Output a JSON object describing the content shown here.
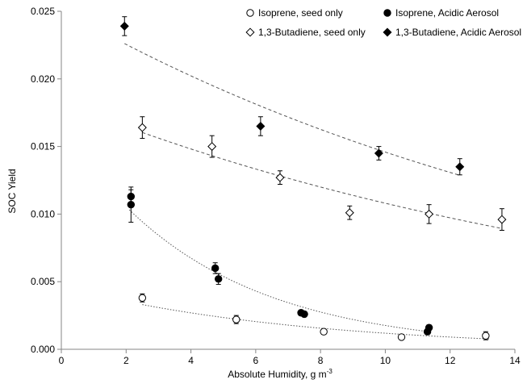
{
  "chart_data": {
    "type": "scatter",
    "xlabel": "Absolute Humidity, g m",
    "xlabel_superscript": "-3",
    "ylabel": "SOC Yield",
    "xlim": [
      0,
      14
    ],
    "ylim": [
      0,
      0.025
    ],
    "x_ticks": [
      "0",
      "2",
      "4",
      "6",
      "8",
      "10",
      "12",
      "14"
    ],
    "y_ticks": [
      "0.000",
      "0.005",
      "0.010",
      "0.015",
      "0.020",
      "0.025"
    ],
    "grid": false,
    "legend_position": "top",
    "series": [
      {
        "name": "Isoprene, seed only",
        "marker": "circle-open",
        "fit": "dotted",
        "fit_x": [
          2.5,
          13.2
        ],
        "points": [
          {
            "x": 2.5,
            "y": 0.0038,
            "yerr": 0.0003
          },
          {
            "x": 5.4,
            "y": 0.0022,
            "yerr": 0.0003
          },
          {
            "x": 8.1,
            "y": 0.0013,
            "yerr": 0.0002
          },
          {
            "x": 10.5,
            "y": 0.0009,
            "yerr": 0.0001
          },
          {
            "x": 13.1,
            "y": 0.001,
            "yerr": 0.0003
          }
        ]
      },
      {
        "name": "Isoprene, Acidic Aerosol",
        "marker": "circle-filled",
        "fit": "dotted",
        "fit_x": [
          2.1,
          11.4
        ],
        "points": [
          {
            "x": 2.15,
            "y": 0.0113,
            "yerr": 0.0005
          },
          {
            "x": 2.15,
            "y": 0.0107,
            "yerr": 0.0013
          },
          {
            "x": 4.75,
            "y": 0.006,
            "yerr": 0.0004
          },
          {
            "x": 4.85,
            "y": 0.0052,
            "yerr": 0.0004
          },
          {
            "x": 7.4,
            "y": 0.0027,
            "yerr": 0.0002
          },
          {
            "x": 7.5,
            "y": 0.0026,
            "yerr": 0.0002
          },
          {
            "x": 11.3,
            "y": 0.0013,
            "yerr": 0.0002
          },
          {
            "x": 11.35,
            "y": 0.0016,
            "yerr": 0.0002
          }
        ]
      },
      {
        "name": "1,3-Butadiene, seed only",
        "marker": "diamond-open",
        "fit": "dashed",
        "fit_x": [
          2.5,
          13.6
        ],
        "points": [
          {
            "x": 2.5,
            "y": 0.0164,
            "yerr": 0.0008
          },
          {
            "x": 4.65,
            "y": 0.015,
            "yerr": 0.0008
          },
          {
            "x": 6.75,
            "y": 0.0127,
            "yerr": 0.0005
          },
          {
            "x": 8.9,
            "y": 0.0101,
            "yerr": 0.0005
          },
          {
            "x": 11.35,
            "y": 0.01,
            "yerr": 0.0007
          },
          {
            "x": 13.6,
            "y": 0.0096,
            "yerr": 0.0008
          }
        ]
      },
      {
        "name": "1,3-Butadiene, Acidic Aerosol",
        "marker": "diamond-filled",
        "fit": "dashed",
        "fit_x": [
          1.95,
          12.3
        ],
        "points": [
          {
            "x": 1.95,
            "y": 0.0239,
            "yerr": 0.0007
          },
          {
            "x": 6.15,
            "y": 0.0165,
            "yerr": 0.0007
          },
          {
            "x": 9.8,
            "y": 0.0145,
            "yerr": 0.0005
          },
          {
            "x": 12.3,
            "y": 0.0135,
            "yerr": 0.0006
          }
        ]
      }
    ]
  }
}
